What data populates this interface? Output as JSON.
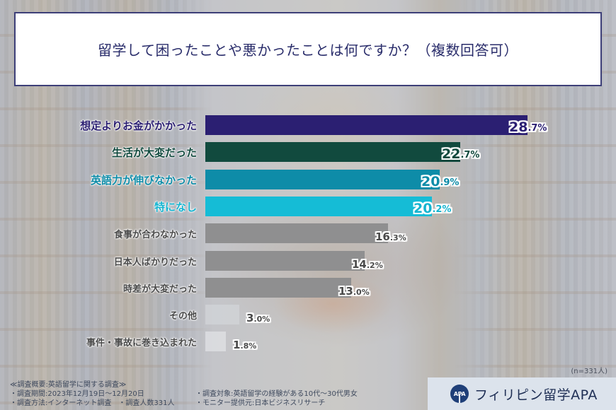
{
  "title": "留学して困ったことや悪かったことは何ですか？（複数回答可）",
  "chart_data": {
    "type": "bar",
    "orientation": "horizontal",
    "title": "留学して困ったことや悪かったことは何ですか？（複数回答可）",
    "xlabel": "",
    "ylabel": "",
    "unit": "%",
    "categories": [
      "想定よりお金がかかった",
      "生活が大変だった",
      "英語力が伸びなかった",
      "特になし",
      "食事が合わなかった",
      "日本人ばかりだった",
      "時差が大変だった",
      "その他",
      "事件・事故に巻き込まれた"
    ],
    "values": [
      28.7,
      22.7,
      20.9,
      20.2,
      16.3,
      14.2,
      13.0,
      3.0,
      1.8
    ],
    "sample_size": "n=331人",
    "grid": false,
    "legend": "none"
  },
  "rows": [
    {
      "label": "想定よりお金がかかった",
      "int": "28",
      "dec": ".7%",
      "value": 28.7,
      "bar_color": "#2b1f72",
      "text_color": "#2b1f72",
      "style": "hl"
    },
    {
      "label": "生活が大変だった",
      "int": "22",
      "dec": ".7%",
      "value": 22.7,
      "bar_color": "#114a3e",
      "text_color": "#114a3e",
      "style": "hl"
    },
    {
      "label": "英語力が伸びなかった",
      "int": "20",
      "dec": ".9%",
      "value": 20.9,
      "bar_color": "#0e8ca8",
      "text_color": "#0e8ca8",
      "style": "hl"
    },
    {
      "label": "特になし",
      "int": "20",
      "dec": ".2%",
      "value": 20.2,
      "bar_color": "#15bcd6",
      "text_color": "#15b4d0",
      "style": "hl"
    },
    {
      "label": "食事が合わなかった",
      "int": "16",
      "dec": ".3%",
      "value": 16.3,
      "bar_color": "#8f8f90",
      "text_color": "#4a4a4a",
      "style": "gr"
    },
    {
      "label": "日本人ばかりだった",
      "int": "14",
      "dec": ".2%",
      "value": 14.2,
      "bar_color": "#8f8f90",
      "text_color": "#4a4a4a",
      "style": "gr"
    },
    {
      "label": "時差が大変だった",
      "int": "13",
      "dec": ".0%",
      "value": 13.0,
      "bar_color": "#8f8f90",
      "text_color": "#4a4a4a",
      "style": "gr"
    },
    {
      "label": "その他",
      "int": "3",
      "dec": ".0%",
      "value": 3.0,
      "bar_color": "rgba(210,212,216,0.75)",
      "text_color": "#4a4a4a",
      "style": "gr"
    },
    {
      "label": "事件・事故に巻き込まれた",
      "int": "1",
      "dec": ".8%",
      "value": 1.8,
      "bar_color": "rgba(222,224,228,0.8)",
      "text_color": "#4a4a4a",
      "style": "gr"
    }
  ],
  "sample": "(n=331人)",
  "notes": {
    "heading": "≪調査概要:英語留学に関する調査≫",
    "period": "・調査期間:2023年12月19日～12月20日",
    "method": "・調査方法:インターネット調査　・調査人数331人",
    "target": "・調査対象:英語留学の経験がある10代～30代男女",
    "provider": "・モニター提供元:日本ビジネスリサーチ"
  },
  "logo": {
    "mark": "APA",
    "text": "フィリピン留学APA"
  }
}
